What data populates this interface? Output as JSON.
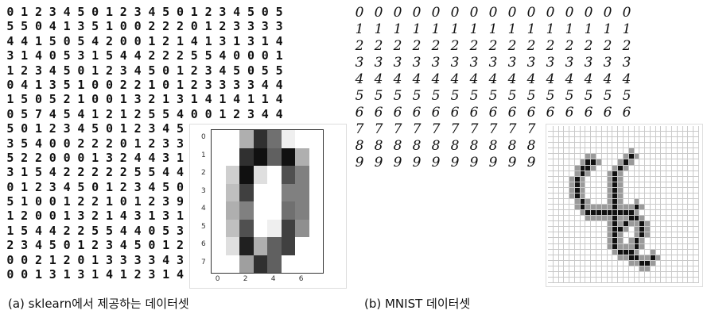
{
  "captions": {
    "a": "(a) sklearn에서 제공하는 데이터셋",
    "b": "(b) MNIST 데이터셋"
  },
  "digits_a_rows": [
    "01234501234501234505",
    "55041351002220123333",
    "44150542001214131314",
    "31405315442225540001",
    "12345012345012345055",
    "04135100221012333344",
    "15052100132131414114",
    "05745412125540012344",
    "50123450123450123450",
    "35400222012333233132",
    "52200013244310052001",
    "31542222255440132322",
    "01234501234501234505",
    "51001221012391335420",
    "12001321431314155401",
    "15442255440535422122",
    "23450123450123450123",
    "00212013333434441314",
    "00131314123144545151"
  ],
  "digits_b_rows": [
    "000000000000000",
    "111111111111111",
    "222222222222222",
    "333333333333333",
    "444444444444444",
    "555555555555555",
    "666666666666666",
    "7777777777",
    "8888888888",
    "9999999999"
  ],
  "heatmap": {
    "values": [
      [
        0,
        0,
        5,
        13,
        9,
        1,
        0,
        0
      ],
      [
        0,
        0,
        13,
        15,
        10,
        15,
        5,
        0
      ],
      [
        0,
        3,
        15,
        2,
        0,
        11,
        8,
        0
      ],
      [
        0,
        4,
        12,
        0,
        0,
        8,
        8,
        0
      ],
      [
        0,
        5,
        8,
        0,
        0,
        9,
        8,
        0
      ],
      [
        0,
        4,
        11,
        0,
        1,
        12,
        7,
        0
      ],
      [
        0,
        2,
        14,
        5,
        10,
        12,
        0,
        0
      ],
      [
        0,
        0,
        6,
        13,
        10,
        0,
        0,
        0
      ]
    ],
    "max": 16,
    "x_ticks": [
      "0",
      "2",
      "4",
      "6"
    ],
    "y_ticks": [
      "0",
      "1",
      "2",
      "3",
      "4",
      "5",
      "6",
      "7"
    ]
  },
  "mnist_four": {
    "size": 28,
    "strokes": [
      [
        6,
        7
      ],
      [
        6,
        8
      ],
      [
        7,
        6
      ],
      [
        7,
        7
      ],
      [
        8,
        6
      ],
      [
        9,
        5
      ],
      [
        10,
        5
      ],
      [
        11,
        5
      ],
      [
        12,
        5
      ],
      [
        13,
        6
      ],
      [
        14,
        6
      ],
      [
        15,
        7
      ],
      [
        15,
        8
      ],
      [
        15,
        9
      ],
      [
        15,
        10
      ],
      [
        15,
        11
      ],
      [
        15,
        12
      ],
      [
        15,
        13
      ],
      [
        15,
        14
      ],
      [
        15,
        15
      ],
      [
        14,
        16
      ],
      [
        5,
        15
      ],
      [
        6,
        14
      ],
      [
        7,
        13
      ],
      [
        8,
        12
      ],
      [
        9,
        12
      ],
      [
        10,
        12
      ],
      [
        11,
        12
      ],
      [
        12,
        12
      ],
      [
        13,
        12
      ],
      [
        14,
        12
      ],
      [
        16,
        12
      ],
      [
        17,
        12
      ],
      [
        18,
        12
      ],
      [
        16,
        16
      ],
      [
        17,
        17
      ],
      [
        18,
        17
      ],
      [
        19,
        17
      ],
      [
        20,
        16
      ],
      [
        21,
        16
      ],
      [
        22,
        15
      ],
      [
        22,
        14
      ],
      [
        22,
        13
      ],
      [
        21,
        12
      ],
      [
        20,
        12
      ],
      [
        19,
        12
      ],
      [
        18,
        13
      ],
      [
        17,
        14
      ],
      [
        16,
        15
      ],
      [
        23,
        15
      ],
      [
        23,
        16
      ],
      [
        24,
        17
      ],
      [
        24,
        18
      ],
      [
        23,
        19
      ]
    ]
  }
}
